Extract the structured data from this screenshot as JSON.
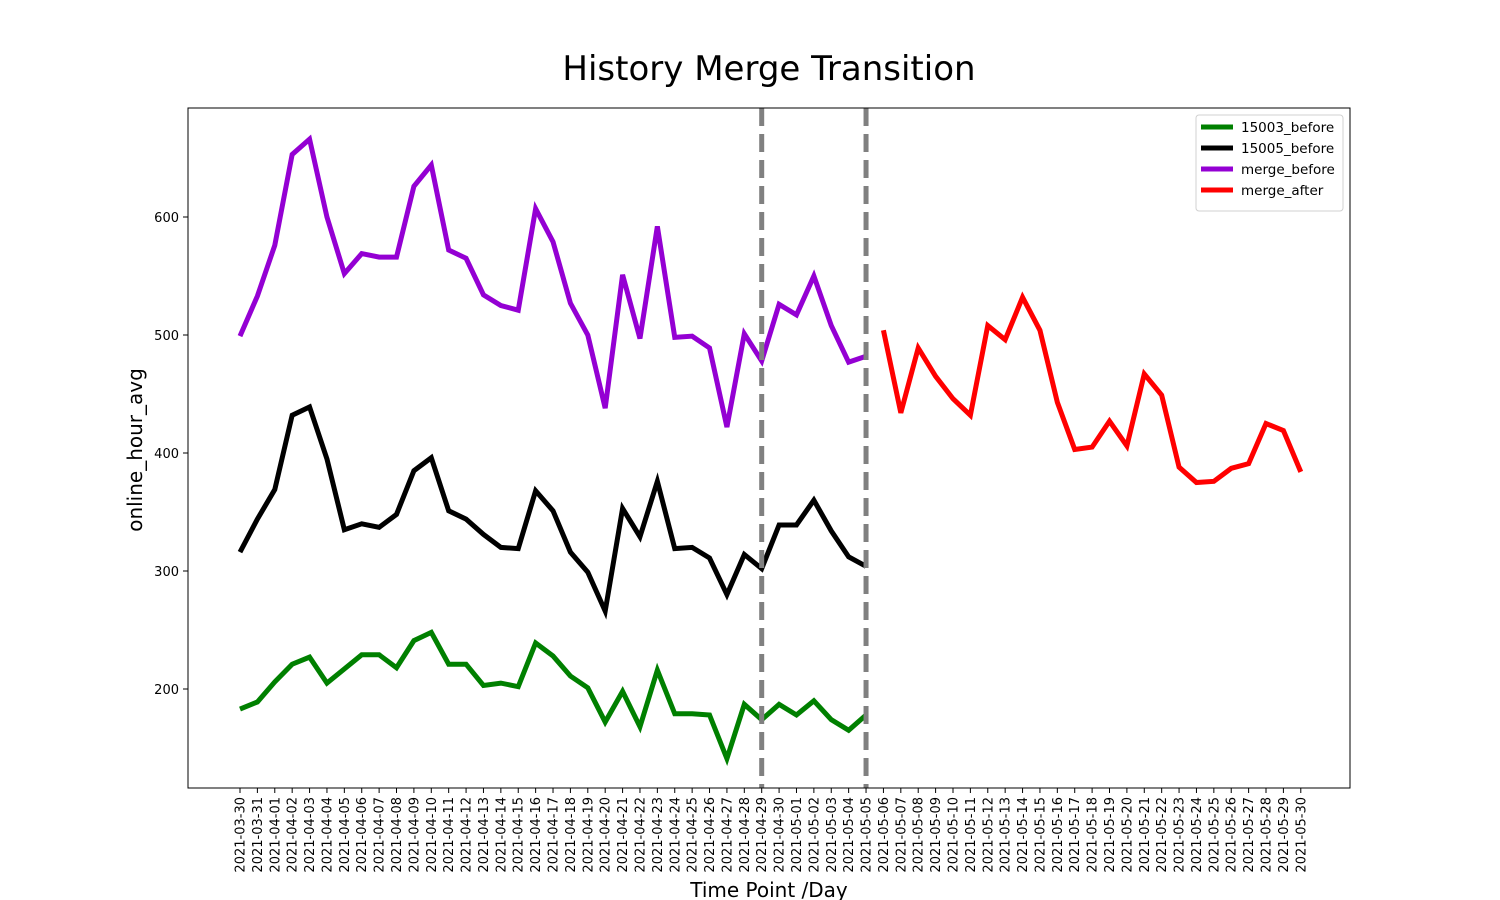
{
  "chart_data": {
    "type": "line",
    "title": "History Merge Transition",
    "xlabel": "Time Point /Day",
    "ylabel": "online_hour_avg",
    "ylim": [
      112,
      692
    ],
    "yticks": [
      200,
      300,
      400,
      500,
      600
    ],
    "grid": false,
    "legend_position": "top-right",
    "x": [
      "2021-03-30",
      "2021-03-31",
      "2021-04-01",
      "2021-04-02",
      "2021-04-03",
      "2021-04-04",
      "2021-04-05",
      "2021-04-06",
      "2021-04-07",
      "2021-04-08",
      "2021-04-09",
      "2021-04-10",
      "2021-04-11",
      "2021-04-12",
      "2021-04-13",
      "2021-04-14",
      "2021-04-15",
      "2021-04-16",
      "2021-04-17",
      "2021-04-18",
      "2021-04-19",
      "2021-04-20",
      "2021-04-21",
      "2021-04-22",
      "2021-04-23",
      "2021-04-24",
      "2021-04-25",
      "2021-04-26",
      "2021-04-27",
      "2021-04-28",
      "2021-04-29",
      "2021-04-30",
      "2021-05-01",
      "2021-05-02",
      "2021-05-03",
      "2021-05-04",
      "2021-05-05",
      "2021-05-06",
      "2021-05-07",
      "2021-05-08",
      "2021-05-09",
      "2021-05-10",
      "2021-05-11",
      "2021-05-12",
      "2021-05-13",
      "2021-05-14",
      "2021-05-15",
      "2021-05-16",
      "2021-05-17",
      "2021-05-18",
      "2021-05-19",
      "2021-05-20",
      "2021-05-21",
      "2021-05-22",
      "2021-05-23",
      "2021-05-24",
      "2021-05-25",
      "2021-05-26",
      "2021-05-27",
      "2021-05-28",
      "2021-05-29",
      "2021-05-30"
    ],
    "vlines": [
      {
        "x": "2021-04-29",
        "color": "#808080",
        "style": "dashed"
      },
      {
        "x": "2021-05-05",
        "color": "#808080",
        "style": "dashed"
      }
    ],
    "series": [
      {
        "name": "15003_before",
        "color": "#008000",
        "x": [
          "2021-03-30",
          "2021-03-31",
          "2021-04-01",
          "2021-04-02",
          "2021-04-03",
          "2021-04-04",
          "2021-04-05",
          "2021-04-06",
          "2021-04-07",
          "2021-04-08",
          "2021-04-09",
          "2021-04-10",
          "2021-04-11",
          "2021-04-12",
          "2021-04-13",
          "2021-04-14",
          "2021-04-15",
          "2021-04-16",
          "2021-04-17",
          "2021-04-18",
          "2021-04-19",
          "2021-04-20",
          "2021-04-21",
          "2021-04-22",
          "2021-04-23",
          "2021-04-24",
          "2021-04-25",
          "2021-04-26",
          "2021-04-27",
          "2021-04-28",
          "2021-04-29",
          "2021-04-30",
          "2021-05-01",
          "2021-05-02",
          "2021-05-03",
          "2021-05-04",
          "2021-05-05"
        ],
        "values": [
          183,
          189,
          206,
          221,
          227,
          205,
          217,
          229,
          229,
          218,
          241,
          248,
          221,
          221,
          203,
          205,
          202,
          239,
          228,
          211,
          201,
          172,
          198,
          168,
          216,
          179,
          179,
          178,
          141,
          187,
          174,
          187,
          178,
          190,
          174,
          165,
          178
        ]
      },
      {
        "name": "15005_before",
        "color": "#000000",
        "x": [
          "2021-03-30",
          "2021-03-31",
          "2021-04-01",
          "2021-04-02",
          "2021-04-03",
          "2021-04-04",
          "2021-04-05",
          "2021-04-06",
          "2021-04-07",
          "2021-04-08",
          "2021-04-09",
          "2021-04-10",
          "2021-04-11",
          "2021-04-12",
          "2021-04-13",
          "2021-04-14",
          "2021-04-15",
          "2021-04-16",
          "2021-04-17",
          "2021-04-18",
          "2021-04-19",
          "2021-04-20",
          "2021-04-21",
          "2021-04-22",
          "2021-04-23",
          "2021-04-24",
          "2021-04-25",
          "2021-04-26",
          "2021-04-27",
          "2021-04-28",
          "2021-04-29",
          "2021-04-30",
          "2021-05-01",
          "2021-05-02",
          "2021-05-03",
          "2021-05-04",
          "2021-05-05"
        ],
        "values": [
          316,
          344,
          369,
          432,
          439,
          395,
          335,
          340,
          337,
          348,
          385,
          396,
          351,
          344,
          331,
          320,
          319,
          368,
          351,
          316,
          299,
          266,
          353,
          329,
          376,
          319,
          320,
          311,
          280,
          314,
          302,
          339,
          339,
          360,
          334,
          312,
          304
        ]
      },
      {
        "name": "merge_before",
        "color": "#9400D3",
        "x": [
          "2021-03-30",
          "2021-03-31",
          "2021-04-01",
          "2021-04-02",
          "2021-04-03",
          "2021-04-04",
          "2021-04-05",
          "2021-04-06",
          "2021-04-07",
          "2021-04-08",
          "2021-04-09",
          "2021-04-10",
          "2021-04-11",
          "2021-04-12",
          "2021-04-13",
          "2021-04-14",
          "2021-04-15",
          "2021-04-16",
          "2021-04-17",
          "2021-04-18",
          "2021-04-19",
          "2021-04-20",
          "2021-04-21",
          "2021-04-22",
          "2021-04-23",
          "2021-04-24",
          "2021-04-25",
          "2021-04-26",
          "2021-04-27",
          "2021-04-28",
          "2021-04-29",
          "2021-04-30",
          "2021-05-01",
          "2021-05-02",
          "2021-05-03",
          "2021-05-04",
          "2021-05-05"
        ],
        "values": [
          499,
          533,
          576,
          653,
          666,
          600,
          552,
          569,
          566,
          566,
          626,
          644,
          572,
          565,
          534,
          525,
          521,
          607,
          579,
          527,
          500,
          438,
          551,
          497,
          592,
          498,
          499,
          489,
          422,
          501,
          478,
          526,
          517,
          550,
          508,
          477,
          482
        ]
      },
      {
        "name": "merge_after",
        "color": "#FF0000",
        "x": [
          "2021-05-06",
          "2021-05-07",
          "2021-05-08",
          "2021-05-09",
          "2021-05-10",
          "2021-05-11",
          "2021-05-12",
          "2021-05-13",
          "2021-05-14",
          "2021-05-15",
          "2021-05-16",
          "2021-05-17",
          "2021-05-18",
          "2021-05-19",
          "2021-05-20",
          "2021-05-21",
          "2021-05-22",
          "2021-05-23",
          "2021-05-24",
          "2021-05-25",
          "2021-05-26",
          "2021-05-27",
          "2021-05-28",
          "2021-05-29",
          "2021-05-30"
        ],
        "values": [
          504,
          434,
          489,
          465,
          446,
          432,
          508,
          496,
          532,
          504,
          443,
          403,
          405,
          427,
          406,
          467,
          449,
          388,
          375,
          376,
          387,
          391,
          425,
          419,
          384
        ]
      }
    ]
  }
}
